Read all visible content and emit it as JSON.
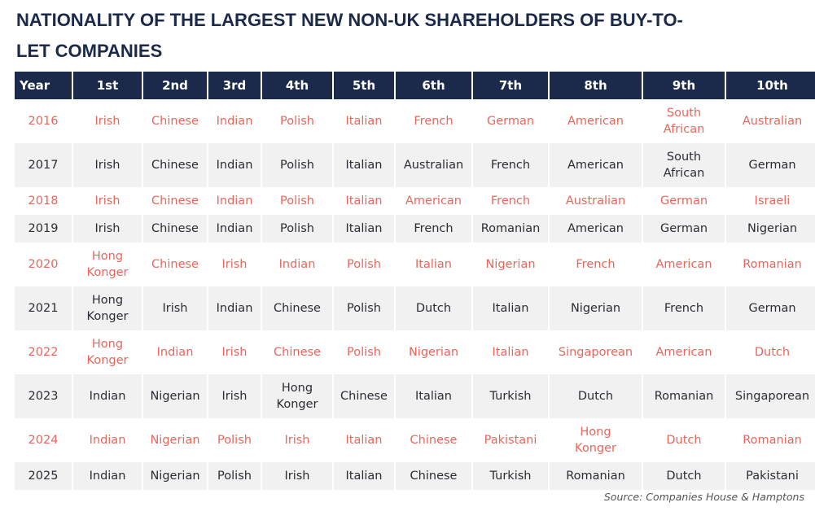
{
  "title": "NATIONALITY OF THE LARGEST NEW NON-UK SHAREHOLDERS OF BUY-TO-LET COMPANIES",
  "table": {
    "header": [
      "Year",
      "1st",
      "2nd",
      "3rd",
      "4th",
      "5th",
      "6th",
      "7th",
      "8th",
      "9th",
      "10th"
    ],
    "rows": [
      [
        "2016",
        "Irish",
        "Chinese",
        "Indian",
        "Polish",
        "Italian",
        "French",
        "German",
        "American",
        "South\nAfrican",
        "Australian"
      ],
      [
        "2017",
        "Irish",
        "Chinese",
        "Indian",
        "Polish",
        "Italian",
        "Australian",
        "French",
        "American",
        "South\nAfrican",
        "German"
      ],
      [
        "2018",
        "Irish",
        "Chinese",
        "Indian",
        "Polish",
        "Italian",
        "American",
        "French",
        "Australian",
        "German",
        "Israeli"
      ],
      [
        "2019",
        "Irish",
        "Chinese",
        "Indian",
        "Polish",
        "Italian",
        "French",
        "Romanian",
        "American",
        "German",
        "Nigerian"
      ],
      [
        "2020",
        "Hong\nKonger",
        "Chinese",
        "Irish",
        "Indian",
        "Polish",
        "Italian",
        "Nigerian",
        "French",
        "American",
        "Romanian"
      ],
      [
        "2021",
        "Hong\nKonger",
        "Irish",
        "Indian",
        "Chinese",
        "Polish",
        "Dutch",
        "Italian",
        "Nigerian",
        "French",
        "German"
      ],
      [
        "2022",
        "Hong\nKonger",
        "Indian",
        "Irish",
        "Chinese",
        "Polish",
        "Nigerian",
        "Italian",
        "Singaporean",
        "American",
        "Dutch"
      ],
      [
        "2023",
        "Indian",
        "Nigerian",
        "Irish",
        "Hong\nKonger",
        "Chinese",
        "Italian",
        "Turkish",
        "Dutch",
        "Romanian",
        "Singaporean"
      ],
      [
        "2024",
        "Indian",
        "Nigerian",
        "Polish",
        "Irish",
        "Italian",
        "Chinese",
        "Pakistani",
        "Hong\nKonger",
        "Dutch",
        "Romanian"
      ],
      [
        "2025",
        "Indian",
        "Nigerian",
        "Polish",
        "Irish",
        "Italian",
        "Chinese",
        "Turkish",
        "Romanian",
        "Dutch",
        "Pakistani"
      ]
    ]
  },
  "source": "Source: Companies House & Hamptons"
}
